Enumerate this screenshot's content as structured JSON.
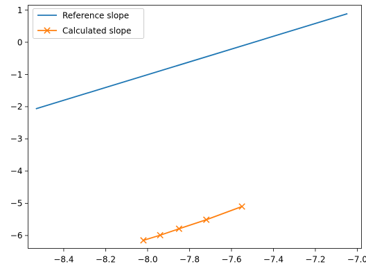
{
  "chart_data": {
    "type": "line",
    "title": "",
    "xlabel": "",
    "ylabel": "",
    "xlim": [
      -8.57,
      -6.98
    ],
    "ylim": [
      -6.4,
      1.15
    ],
    "xticks": [
      -8.4,
      -8.2,
      -8.0,
      -7.8,
      -7.6,
      -7.4,
      -7.2,
      -7.0
    ],
    "yticks": [
      1,
      0,
      -1,
      -2,
      -3,
      -4,
      -5,
      -6
    ],
    "xtick_labels": [
      "−8.4",
      "−8.2",
      "−8.0",
      "−7.8",
      "−7.6",
      "−7.4",
      "−7.2",
      "−7.0"
    ],
    "ytick_labels": [
      "1",
      "0",
      "−1",
      "−2",
      "−3",
      "−4",
      "−5",
      "−6"
    ],
    "grid": false,
    "legend_position": "top-left",
    "series": [
      {
        "name": "Reference slope",
        "color": "#1f77b4",
        "marker": "none",
        "x": [
          -8.53,
          -7.05
        ],
        "y": [
          -2.06,
          0.88
        ]
      },
      {
        "name": "Calculated slope",
        "color": "#ff7f0e",
        "marker": "x",
        "x": [
          -8.02,
          -7.94,
          -7.85,
          -7.72,
          -7.55
        ],
        "y": [
          -6.15,
          -5.99,
          -5.79,
          -5.51,
          -5.1
        ]
      }
    ]
  }
}
